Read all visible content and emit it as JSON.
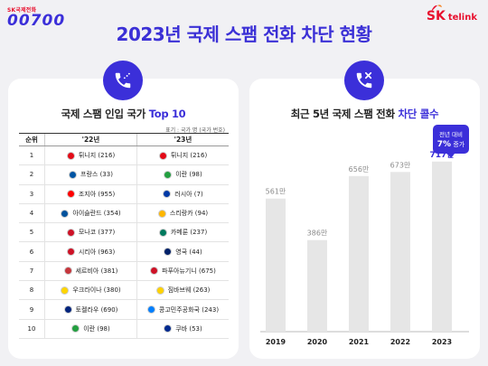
{
  "header": {
    "brand_tag": "SK국제전화",
    "brand_logo": "00700",
    "title": "2023년 국제 스팸 전화 차단 현황",
    "sk_label": "SK",
    "telink_label": "telink"
  },
  "left_panel": {
    "title_main": "국제 스팸 인입 국가",
    "title_accent": "Top 10",
    "unit_note": "표기 : 국가 명 (국가 번호)",
    "columns": [
      "순위",
      "'22년",
      "'23년"
    ],
    "rows": [
      {
        "rank": "1",
        "y22": "튀니지 (216)",
        "y23": "튀니지 (216)"
      },
      {
        "rank": "2",
        "y22": "프랑스 (33)",
        "y23": "이란 (98)"
      },
      {
        "rank": "3",
        "y22": "조지아 (955)",
        "y23": "러시아 (7)"
      },
      {
        "rank": "4",
        "y22": "아이슬란드 (354)",
        "y23": "스리랑카 (94)"
      },
      {
        "rank": "5",
        "y22": "모나코 (377)",
        "y23": "카메룬 (237)"
      },
      {
        "rank": "6",
        "y22": "시리아 (963)",
        "y23": "영국 (44)"
      },
      {
        "rank": "7",
        "y22": "세르비아 (381)",
        "y23": "파푸아뉴기니 (675)"
      },
      {
        "rank": "8",
        "y22": "우크라이나 (380)",
        "y23": "짐바브웨 (263)"
      },
      {
        "rank": "9",
        "y22": "토켈라우 (690)",
        "y23": "콩고민주공화국 (243)"
      },
      {
        "rank": "10",
        "y22": "이란 (98)",
        "y23": "쿠바 (53)"
      }
    ],
    "flag_colors_22": [
      "#e30a17",
      "#0055a4",
      "#ff0000",
      "#02529c",
      "#ce1126",
      "#ce1126",
      "#c6363c",
      "#ffd500",
      "#00247d",
      "#239f40"
    ],
    "flag_colors_23": [
      "#e30a17",
      "#239f40",
      "#0039a6",
      "#ffb700",
      "#007a5e",
      "#012169",
      "#ce1126",
      "#ffd200",
      "#007fff",
      "#002a8f"
    ]
  },
  "right_panel": {
    "title_main": "최근 5년 국제 스팸 전화",
    "title_accent": "차단 콜수",
    "callout_line1": "전년 대비",
    "callout_pct": "7%",
    "callout_suffix": "증가"
  },
  "chart_data": {
    "type": "bar",
    "categories": [
      "2019",
      "2020",
      "2021",
      "2022",
      "2023"
    ],
    "values": [
      561,
      386,
      656,
      673,
      717
    ],
    "data_labels": [
      "561만",
      "386만",
      "656만",
      "673만",
      "717만"
    ],
    "unit": "만",
    "ylim": [
      0,
      800
    ],
    "bar_color": "#e6e6e6",
    "highlight_color": "#3b2fd9",
    "label_color": "#8a8a8a",
    "grid": false
  },
  "colors": {
    "accent": "#3b2fd9",
    "brand_red": "#e8102e",
    "background": "#f1f1f4"
  }
}
